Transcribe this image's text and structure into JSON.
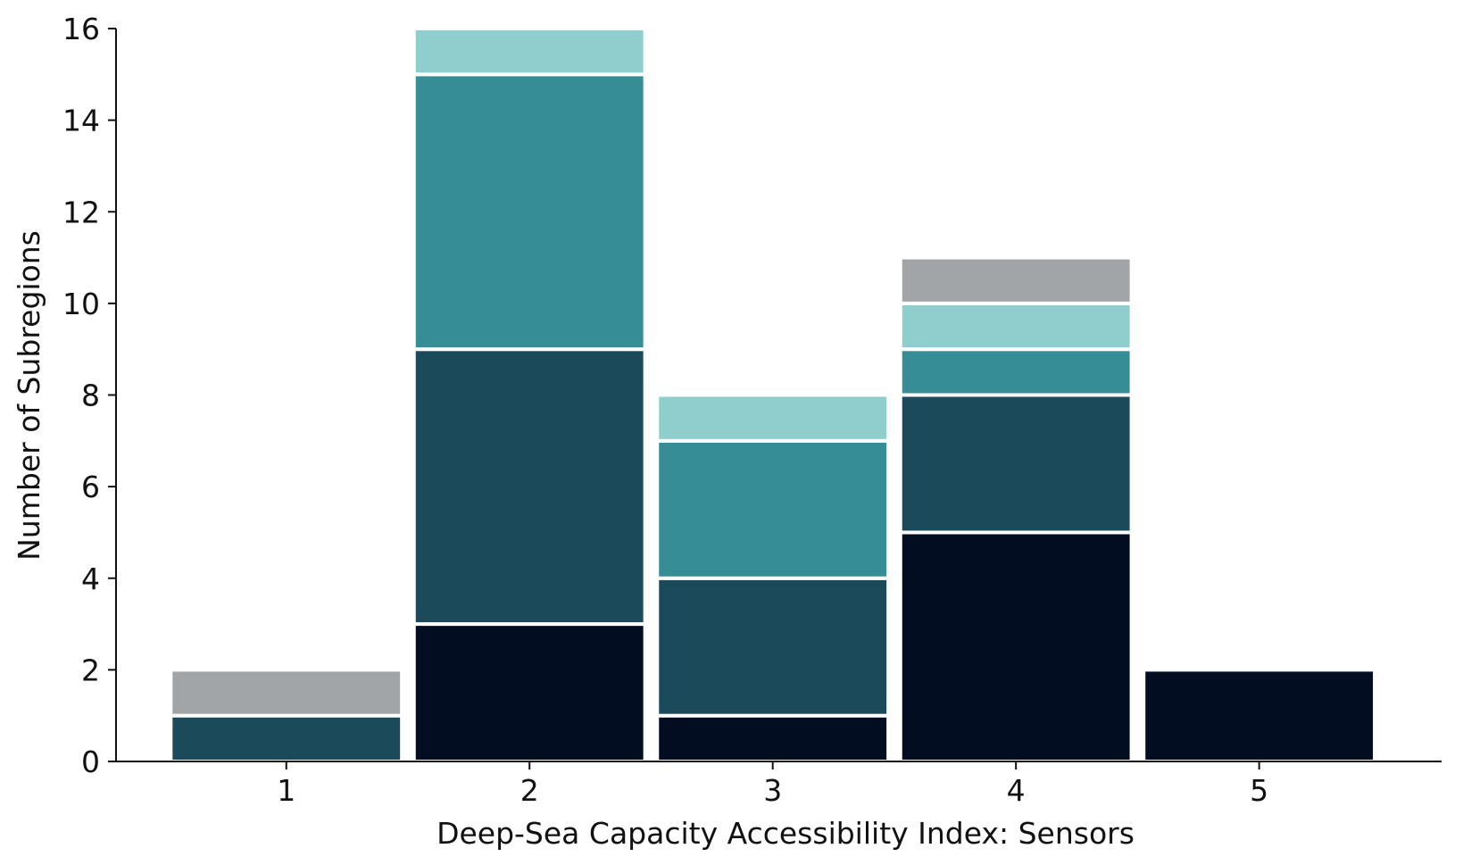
{
  "chart_data": {
    "type": "bar",
    "stacked": true,
    "categories": [
      "1",
      "2",
      "3",
      "4",
      "5"
    ],
    "xlabel": "Deep-Sea Capacity Accessibility Index: Sensors",
    "ylabel": "Number of Subregions",
    "ylim": [
      0,
      16
    ],
    "yticks": [
      0,
      2,
      4,
      6,
      8,
      10,
      12,
      14,
      16
    ],
    "grid": false,
    "series": [
      {
        "values": [
          0,
          3,
          1,
          5,
          2
        ],
        "color": "#020d22"
      },
      {
        "values": [
          1,
          6,
          3,
          3,
          0
        ],
        "color": "#1b4a5b"
      },
      {
        "values": [
          0,
          6,
          3,
          1,
          0
        ],
        "color": "#378d96"
      },
      {
        "values": [
          0,
          1,
          1,
          1,
          0
        ],
        "color": "#8ecfce"
      },
      {
        "values": [
          1,
          0,
          0,
          1,
          0
        ],
        "color": "#a2a5a8"
      }
    ]
  }
}
